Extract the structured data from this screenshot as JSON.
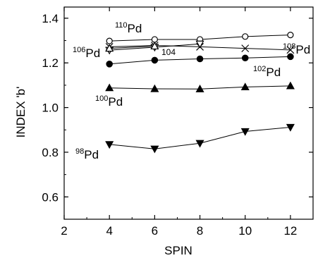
{
  "chart_data": {
    "type": "line",
    "xlabel": "SPIN",
    "ylabel": "INDEX 'b'",
    "xlim": [
      2,
      13
    ],
    "ylim": [
      0.5,
      1.45
    ],
    "xticks": [
      2,
      4,
      6,
      8,
      10,
      12
    ],
    "yticks": [
      0.6,
      0.8,
      1.0,
      1.2,
      1.4
    ],
    "xtick_labels": [
      "2",
      "4",
      "6",
      "8",
      "10",
      "12"
    ],
    "ytick_labels": [
      "0.6",
      "0.8",
      "1.0",
      "1.2",
      "1.4"
    ],
    "grid": false,
    "legend": "none",
    "x": [
      4,
      6,
      8,
      10,
      12
    ],
    "series": [
      {
        "name": "110Pd",
        "marker": "open-circle",
        "values": [
          1.298,
          1.305,
          1.305,
          1.318,
          1.325
        ]
      },
      {
        "name": "108Pd",
        "marker": "cross",
        "values": [
          1.272,
          1.278,
          1.272,
          1.265,
          1.258
        ]
      },
      {
        "name": "104",
        "marker": "open-triangle-down",
        "values": [
          1.257,
          1.27,
          1.285,
          null,
          null
        ]
      },
      {
        "name": "106Pd",
        "marker": "open-triangle-up",
        "values": [
          1.265,
          1.275,
          null,
          null,
          null
        ]
      },
      {
        "name": "102Pd",
        "marker": "filled-circle",
        "values": [
          1.195,
          1.212,
          1.218,
          1.222,
          1.228
        ]
      },
      {
        "name": "100Pd",
        "marker": "filled-triangle-up",
        "values": [
          1.088,
          1.084,
          1.083,
          1.092,
          1.097
        ]
      },
      {
        "name": "98Pd",
        "marker": "filled-triangle-down",
        "values": [
          0.835,
          0.815,
          0.84,
          0.893,
          0.912
        ]
      }
    ],
    "annotations": [
      {
        "mass": "110",
        "element": "Pd"
      },
      {
        "mass": "106",
        "element": "Pd"
      },
      {
        "mass": "",
        "element": "104"
      },
      {
        "mass": "108",
        "element": "Pd"
      },
      {
        "mass": "102",
        "element": "Pd"
      },
      {
        "mass": "100",
        "element": "Pd"
      },
      {
        "mass": "98",
        "element": "Pd"
      }
    ]
  }
}
